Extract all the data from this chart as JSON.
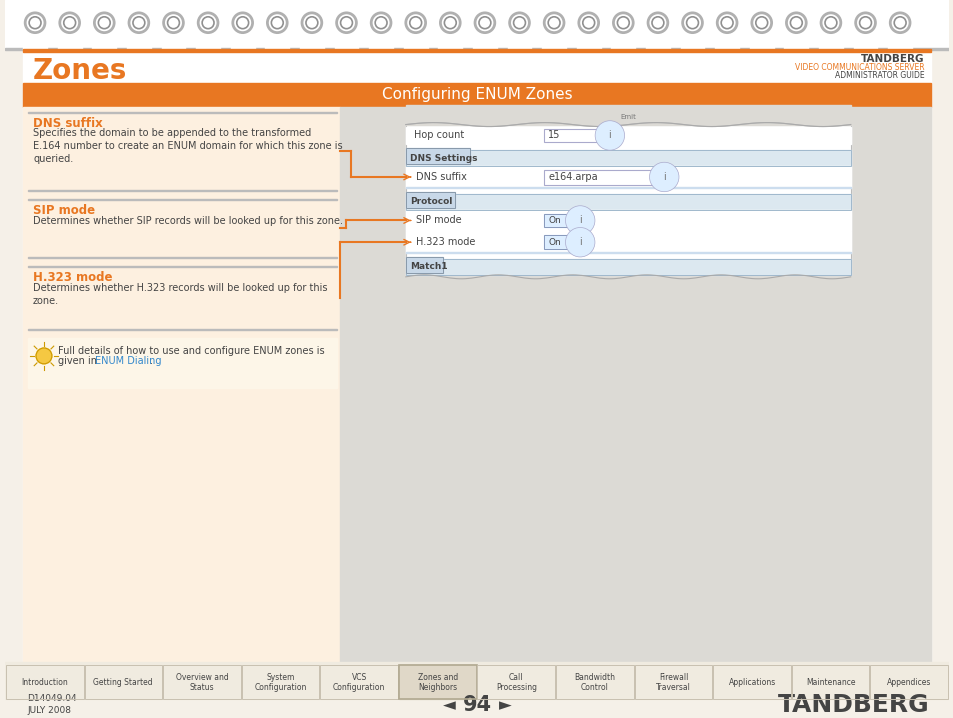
{
  "bg_cream": "#f5f0e8",
  "white": "#ffffff",
  "orange_header": "#e87722",
  "left_panel_bg": "#fdf0e0",
  "right_panel_bg": "#dcdad5",
  "inner_panel_bg": "#e8e8ec",
  "section_box_bg": "#ffffff",
  "section_header_blue": "#c5d8e8",
  "section_header_border": "#a0b8cc",
  "dark_gray": "#444444",
  "medium_gray": "#777777",
  "light_gray_border": "#bbbbbb",
  "orange_text": "#e87722",
  "blue_link": "#3388cc",
  "nav_bg": "#f0ebe0",
  "nav_border": "#c8c0b0",
  "nav_active_bg": "#e0d8c8",
  "title_zones": "Zones",
  "title_zones_color": "#e87722",
  "header_text": "Configuring ENUM Zones",
  "tandberg_label": "TANDBERG",
  "vcs_label": "VIDEO COMMUNICATIONS SERVER",
  "admin_label": "ADMINISTRATOR GUIDE",
  "page_num": "94",
  "doc_id": "D14049.04",
  "date": "JULY 2008",
  "dns_title": "DNS suffix",
  "dns_body": "Specifies the domain to be appended to the transformed\nE.164 number to create an ENUM domain for which this zone is\nqueried.",
  "sip_title": "SIP mode",
  "sip_body": "Determines whether SIP records will be looked up for this zone.",
  "h323_title": "H.323 mode",
  "h323_body": "Determines whether H.323 records will be looked up for this\nzone.",
  "tip_text1": "Full details of how to use and configure ENUM zones is",
  "tip_text2": "given in ",
  "tip_link": "ENUM Dialing",
  "tab_labels": [
    "Introduction",
    "Getting Started",
    "Overview and\nStatus",
    "System\nConfiguration",
    "VCS\nConfiguration",
    "Zones and\nNeighbors",
    "Call\nProcessing",
    "Bandwidth\nControl",
    "Firewall\nTraversal",
    "Applications",
    "Maintenance",
    "Appendices"
  ],
  "active_tab": 5,
  "spiral_color": "#b0b0b0",
  "spiral_shadow": "#909090",
  "coil_bg": "#f0ece4"
}
